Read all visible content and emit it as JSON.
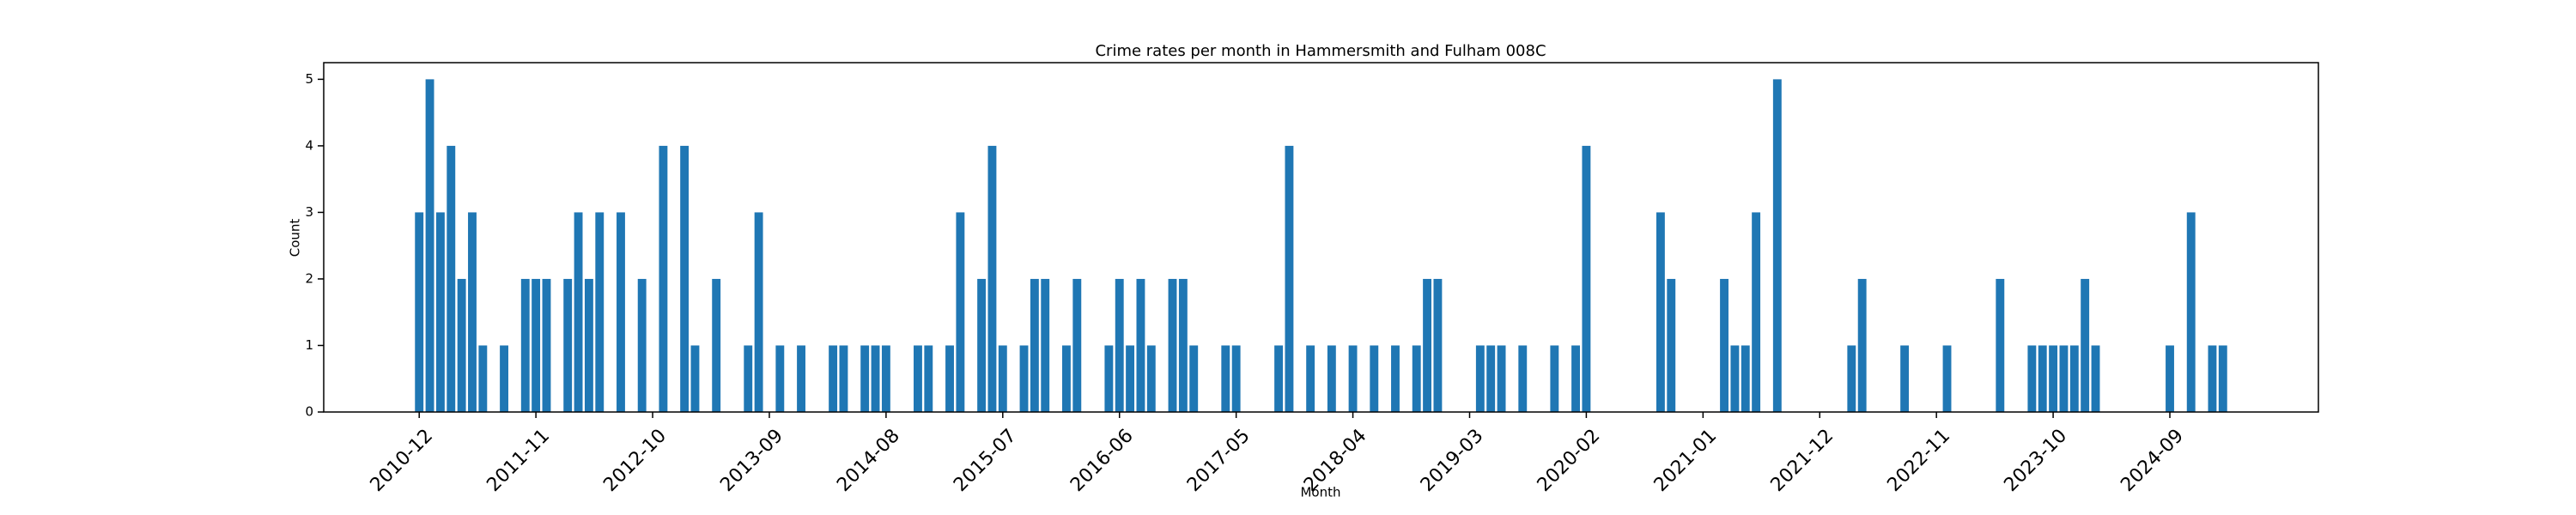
{
  "chart_data": {
    "type": "bar",
    "title": "Crime rates per month in Hammersmith and Fulham 008C",
    "xlabel": "Month",
    "ylabel": "Count",
    "color": "#1f77b4",
    "x": [
      "2010-12",
      "2011-01",
      "2011-02",
      "2011-03",
      "2011-04",
      "2011-05",
      "2011-06",
      "2011-08",
      "2011-10",
      "2011-11",
      "2011-12",
      "2012-02",
      "2012-03",
      "2012-04",
      "2012-05",
      "2012-07",
      "2012-09",
      "2012-11",
      "2013-01",
      "2013-02",
      "2013-04",
      "2013-07",
      "2013-08",
      "2013-10",
      "2013-12",
      "2014-03",
      "2014-04",
      "2014-06",
      "2014-07",
      "2014-08",
      "2014-11",
      "2014-12",
      "2015-02",
      "2015-03",
      "2015-05",
      "2015-06",
      "2015-07",
      "2015-09",
      "2015-10",
      "2015-11",
      "2016-01",
      "2016-02",
      "2016-05",
      "2016-06",
      "2016-07",
      "2016-08",
      "2016-09",
      "2016-11",
      "2016-12",
      "2017-01",
      "2017-04",
      "2017-05",
      "2017-09",
      "2017-10",
      "2017-12",
      "2018-02",
      "2018-04",
      "2018-06",
      "2018-08",
      "2018-10",
      "2018-11",
      "2018-12",
      "2019-04",
      "2019-05",
      "2019-06",
      "2019-08",
      "2019-11",
      "2020-01",
      "2020-02",
      "2020-09",
      "2020-10",
      "2021-03",
      "2021-04",
      "2021-05",
      "2021-06",
      "2021-08",
      "2022-03",
      "2022-04",
      "2022-08",
      "2022-12",
      "2023-05",
      "2023-08",
      "2023-09",
      "2023-10",
      "2023-11",
      "2023-12",
      "2024-01",
      "2024-02",
      "2024-09",
      "2024-11",
      "2025-01",
      "2025-02"
    ],
    "values": [
      3,
      5,
      3,
      4,
      2,
      3,
      1,
      1,
      2,
      2,
      2,
      2,
      3,
      2,
      3,
      3,
      2,
      4,
      4,
      1,
      2,
      1,
      3,
      1,
      1,
      1,
      1,
      1,
      1,
      1,
      1,
      1,
      1,
      3,
      2,
      4,
      1,
      1,
      2,
      2,
      1,
      2,
      1,
      2,
      1,
      2,
      1,
      2,
      2,
      1,
      1,
      1,
      1,
      4,
      1,
      1,
      1,
      1,
      1,
      1,
      2,
      2,
      1,
      1,
      1,
      1,
      1,
      1,
      4,
      3,
      2,
      2,
      1,
      1,
      3,
      5,
      1,
      2,
      1,
      1,
      2,
      1,
      1,
      1,
      1,
      1,
      2,
      1,
      1,
      3,
      1,
      1
    ],
    "xlim": [
      "2010-03",
      "2025-11"
    ],
    "xticks": [
      "2010-12",
      "2011-11",
      "2012-10",
      "2013-09",
      "2014-08",
      "2015-07",
      "2016-06",
      "2017-05",
      "2018-04",
      "2019-03",
      "2020-02",
      "2021-01",
      "2021-12",
      "2022-11",
      "2023-10",
      "2024-09"
    ],
    "ylim": [
      0,
      5.25
    ],
    "yticks": [
      0,
      1,
      2,
      3,
      4,
      5
    ],
    "grid": false
  }
}
